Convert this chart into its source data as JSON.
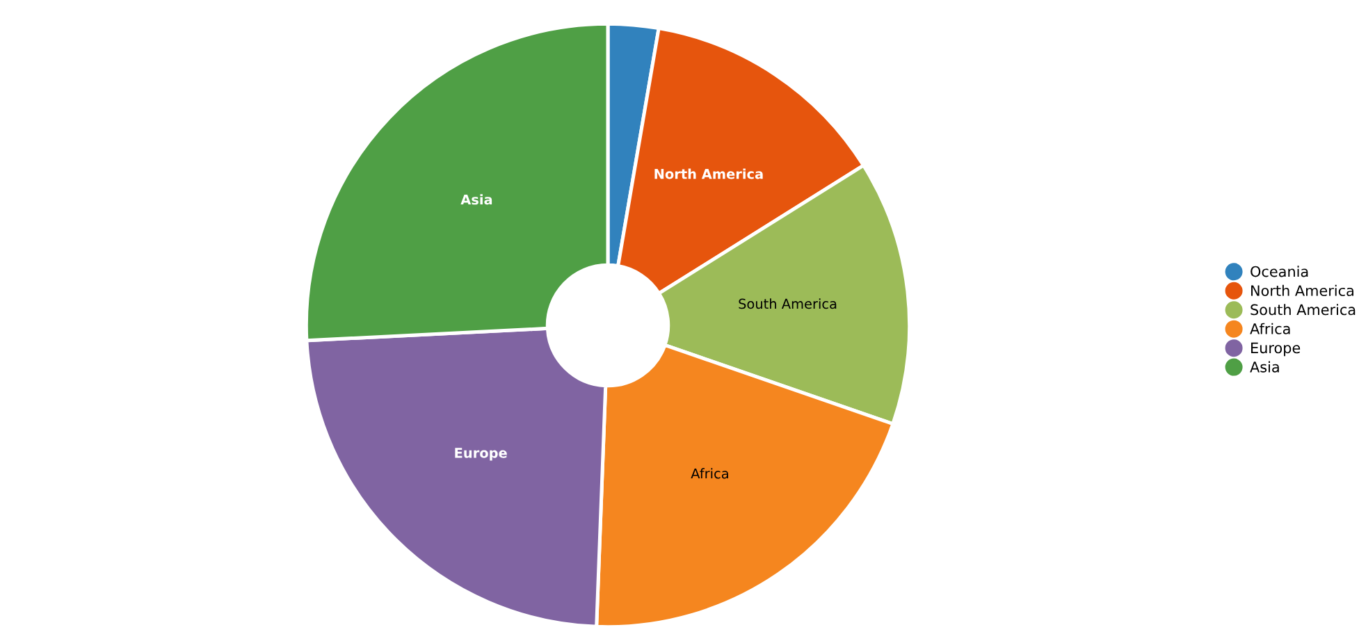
{
  "chart_data": {
    "type": "donut",
    "categories": [
      "Oceania",
      "North America",
      "South America",
      "Africa",
      "Europe",
      "Asia"
    ],
    "values": [
      2.7,
      13.4,
      14.2,
      20.3,
      23.6,
      25.8
    ],
    "colors": [
      "#3182bd",
      "#e6550d",
      "#9cbb58",
      "#f5861f",
      "#8064a2",
      "#4f9f45"
    ],
    "legend": "right"
  }
}
